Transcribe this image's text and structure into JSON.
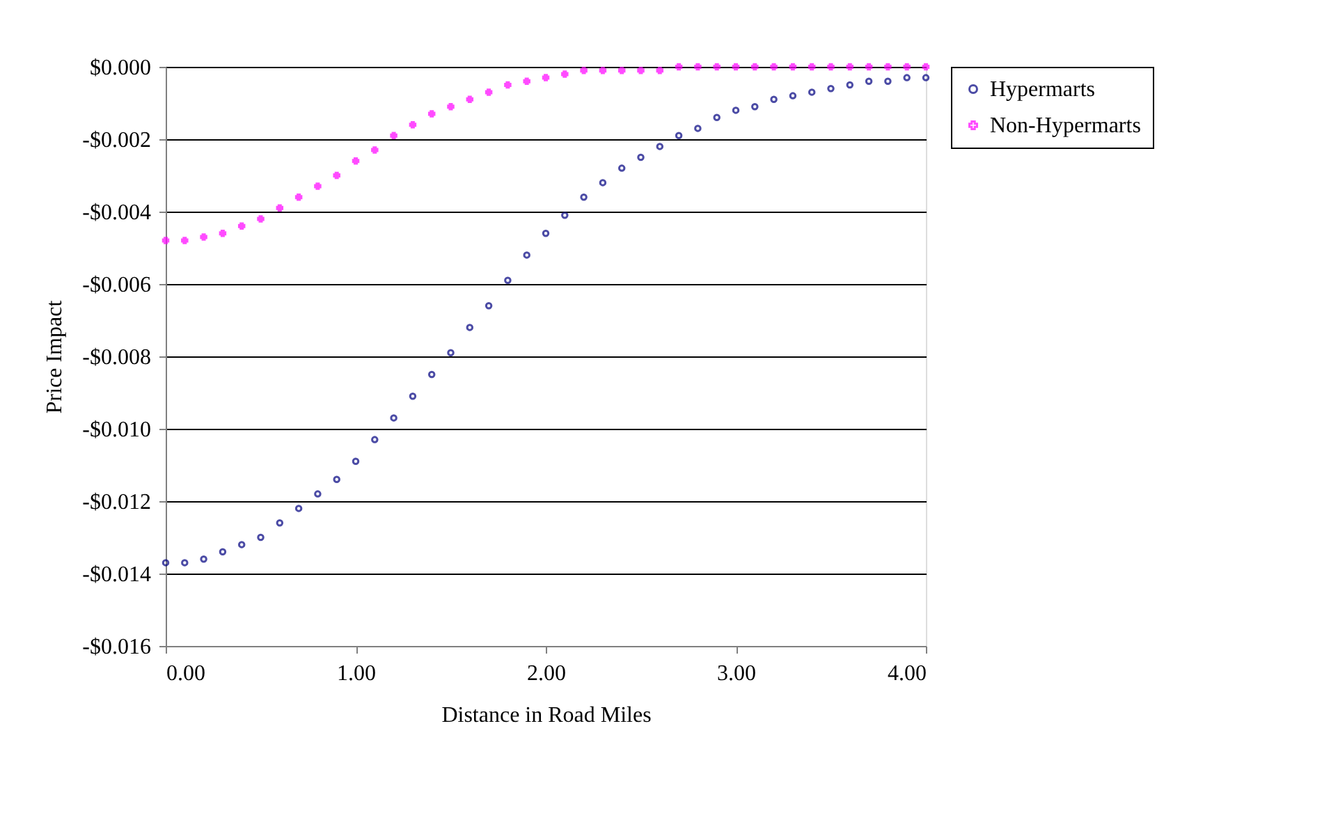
{
  "chart_data": {
    "type": "scatter",
    "xlabel": "Distance in Road Miles",
    "ylabel": "Price Impact",
    "x": [
      0,
      0.1,
      0.2,
      0.3,
      0.4,
      0.5,
      0.6,
      0.7,
      0.8,
      0.9,
      1.0,
      1.1,
      1.2,
      1.3,
      1.4,
      1.5,
      1.6,
      1.7,
      1.8,
      1.9,
      2.0,
      2.1,
      2.2,
      2.3,
      2.4,
      2.5,
      2.6,
      2.7,
      2.8,
      2.9,
      3.0,
      3.1,
      3.2,
      3.3,
      3.4,
      3.5,
      3.6,
      3.7,
      3.8,
      3.9,
      4.0
    ],
    "series": [
      {
        "name": "Hypermarts",
        "color": "#000080",
        "marker": "circle",
        "values": [
          -0.0137,
          -0.0137,
          -0.0136,
          -0.0134,
          -0.0132,
          -0.013,
          -0.0126,
          -0.0122,
          -0.0118,
          -0.0114,
          -0.0109,
          -0.0103,
          -0.0097,
          -0.0091,
          -0.0085,
          -0.0079,
          -0.0072,
          -0.0066,
          -0.0059,
          -0.0052,
          -0.0046,
          -0.0041,
          -0.0036,
          -0.0032,
          -0.0028,
          -0.0025,
          -0.0022,
          -0.0019,
          -0.0017,
          -0.0014,
          -0.0012,
          -0.0011,
          -0.0009,
          -0.0008,
          -0.0007,
          -0.0006,
          -0.0005,
          -0.0004,
          -0.0004,
          -0.0003,
          -0.0003
        ]
      },
      {
        "name": "Non-Hypermarts",
        "color": "#ff00ff",
        "marker": "cross",
        "values": [
          -0.0048,
          -0.0048,
          -0.0047,
          -0.0046,
          -0.0044,
          -0.0042,
          -0.0039,
          -0.0036,
          -0.0033,
          -0.003,
          -0.0026,
          -0.0023,
          -0.0019,
          -0.0016,
          -0.0013,
          -0.0011,
          -0.0009,
          -0.0007,
          -0.0005,
          -0.0004,
          -0.0003,
          -0.0002,
          -0.0001,
          -0.0001,
          -0.0001,
          -0.0001,
          -0.0001,
          0,
          0,
          0,
          0,
          0,
          0,
          0,
          0,
          0,
          0,
          0,
          0,
          0,
          0
        ]
      }
    ],
    "xlim": [
      0,
      4
    ],
    "xticks": [
      {
        "value": 0,
        "label": "0.00"
      },
      {
        "value": 1,
        "label": "1.00"
      },
      {
        "value": 2,
        "label": "2.00"
      },
      {
        "value": 3,
        "label": "3.00"
      },
      {
        "value": 4,
        "label": "4.00"
      }
    ],
    "ylim": [
      -0.016,
      0
    ],
    "yticks": [
      {
        "value": -0.016,
        "label": "-$0.016"
      },
      {
        "value": -0.014,
        "label": "-$0.014"
      },
      {
        "value": -0.012,
        "label": "-$0.012"
      },
      {
        "value": -0.01,
        "label": "-$0.010"
      },
      {
        "value": -0.008,
        "label": "-$0.008"
      },
      {
        "value": -0.006,
        "label": "-$0.006"
      },
      {
        "value": -0.004,
        "label": "-$0.004"
      },
      {
        "value": -0.002,
        "label": "-$0.002"
      },
      {
        "value": 0,
        "label": "$0.000"
      }
    ],
    "grid": "y",
    "legend": "right"
  }
}
